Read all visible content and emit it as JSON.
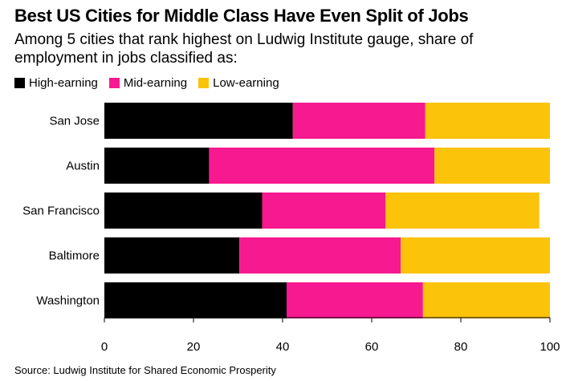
{
  "title": "Best US Cities for Middle Class Have Even Split of Jobs",
  "subtitle": "Among 5 cities that rank highest on Ludwig Institute gauge, share of employment in jobs classified as:",
  "source": "Source: Ludwig Institute for Shared Economic Prosperity",
  "chart_data": {
    "type": "bar",
    "orientation": "horizontal",
    "stacked": true,
    "categories": [
      "San Jose",
      "Austin",
      "San Francisco",
      "Baltimore",
      "Washington"
    ],
    "series": [
      {
        "name": "High-earning",
        "color": "#000000",
        "values": [
          42.3,
          23.5,
          35.4,
          30.3,
          40.9
        ]
      },
      {
        "name": "Mid-earning",
        "color": "#f7198f",
        "values": [
          29.7,
          50.6,
          27.7,
          36.2,
          30.6
        ]
      },
      {
        "name": "Low-earning",
        "color": "#fcc30b",
        "values": [
          28.0,
          25.9,
          34.5,
          33.5,
          28.5
        ]
      }
    ],
    "xlim": [
      0,
      100
    ],
    "xticks": [
      0,
      20,
      40,
      60,
      80,
      100
    ],
    "legend_position": "top-left",
    "grid": false
  }
}
